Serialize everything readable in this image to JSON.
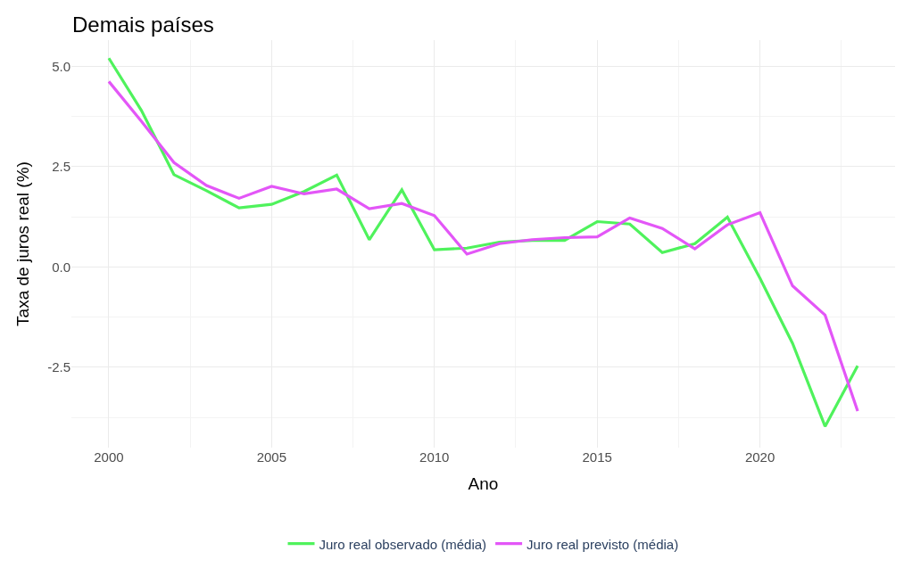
{
  "chart_data": {
    "type": "line",
    "title": "Demais países",
    "xlabel": "Ano",
    "ylabel": "Taxa de juros real (%)",
    "x": [
      2000,
      2001,
      2002,
      2003,
      2004,
      2005,
      2006,
      2007,
      2008,
      2009,
      2010,
      2011,
      2012,
      2013,
      2014,
      2015,
      2016,
      2017,
      2018,
      2019,
      2020,
      2021,
      2022,
      2023
    ],
    "series": [
      {
        "name": "Juro real observado (média)",
        "color": "#4ff25c",
        "values": [
          5.2,
          3.9,
          2.3,
          1.9,
          1.47,
          1.56,
          1.88,
          2.29,
          0.68,
          1.92,
          0.43,
          0.47,
          0.62,
          0.66,
          0.66,
          1.13,
          1.07,
          0.36,
          0.58,
          1.24,
          -0.28,
          -1.9,
          -3.97,
          -2.46
        ]
      },
      {
        "name": "Juro real previsto (média)",
        "color": "#e356f7",
        "values": [
          4.62,
          3.63,
          2.6,
          2.03,
          1.71,
          2.01,
          1.82,
          1.94,
          1.45,
          1.58,
          1.28,
          0.32,
          0.58,
          0.68,
          0.73,
          0.75,
          1.22,
          0.96,
          0.45,
          1.05,
          1.35,
          -0.47,
          -1.2,
          -3.59
        ]
      }
    ],
    "xlim": [
      1998.85,
      2024.15
    ],
    "xticks": [
      2000,
      2005,
      2010,
      2015,
      2020
    ],
    "ylim": [
      -4.5,
      5.65
    ],
    "yticks": [
      {
        "value": -2.5,
        "label": "-2.5"
      },
      {
        "value": 0,
        "label": "0.0"
      },
      {
        "value": 2.5,
        "label": "2.5"
      },
      {
        "value": 5,
        "label": "5.0"
      }
    ],
    "grid": true,
    "legend": "bottom",
    "marker": "none",
    "line_style": "solid"
  }
}
